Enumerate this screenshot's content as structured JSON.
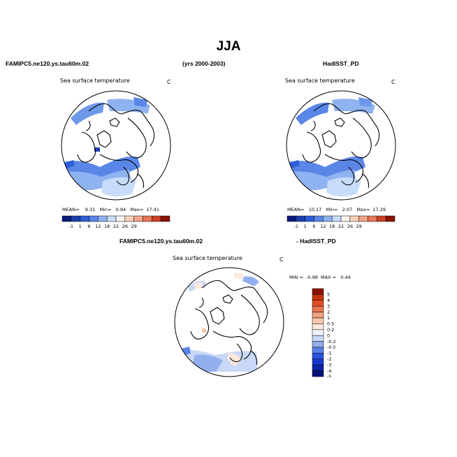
{
  "figure": {
    "season": "JJA",
    "model_name": "FAMIPC5.ne120.ys.tau60m.02",
    "years": "(yrs 2000-2003)",
    "obs_name": "HadISST_PD",
    "diff_model": "FAMIPC5.ne120.ys.tau60m.02",
    "diff_obs": "- HadISST_PD"
  },
  "panels": {
    "model": {
      "title": "Sea surface temperature",
      "units": "C",
      "mean_label": "MEAN=",
      "mean": "9.31",
      "min_label": "Min=",
      "min": "0.94",
      "max_label": "Max=",
      "max": "17.41"
    },
    "obs": {
      "title": "Sea surface temperature",
      "units": "C",
      "mean_label": "MEAN=",
      "mean": "10.17",
      "min_label": "Min=",
      "min": "2.07",
      "max_label": "Max=",
      "max": "17.29"
    },
    "diff": {
      "title": "Sea surface temperature",
      "units": "C",
      "min_label": "MIN =",
      "min": "-0.98",
      "max_label": "MAX =",
      "max": "0.44"
    }
  },
  "colorbars": {
    "sst": {
      "colors": [
        "#0a1c7a",
        "#1f3fae",
        "#2f5fd8",
        "#5a86e8",
        "#8fb3f0",
        "#c6dcf8",
        "#f7f3ef",
        "#f7d0b8",
        "#f2a488",
        "#e8765a",
        "#cc4226",
        "#8a1206"
      ],
      "labels": [
        "-1",
        "1",
        "6",
        "12",
        "18",
        "22",
        "26",
        "29"
      ]
    },
    "diff": {
      "colors": [
        "#08107a",
        "#0d22a6",
        "#1636cc",
        "#2a55e0",
        "#5a82e6",
        "#92b0ee",
        "#c8d8f6",
        "#ecf1fb",
        "#fde9de",
        "#f8c6ac",
        "#f2a07e",
        "#ea7650",
        "#e04e26",
        "#c8320c",
        "#8c1200"
      ],
      "labels": [
        "5",
        "4",
        "3",
        "2",
        "1",
        "0.5",
        "0.2",
        "0",
        "-0.2",
        "-0.5",
        "-1",
        "-2",
        "-3",
        "-4",
        "-5"
      ]
    }
  },
  "chart_data": [
    {
      "type": "heatmap",
      "title": "Sea surface temperature",
      "units": "C",
      "projection": "north polar stereographic",
      "color_levels": [
        -1,
        1,
        6,
        12,
        18,
        22,
        26,
        29
      ],
      "stats": {
        "mean": 9.31,
        "min": 0.94,
        "max": 17.41
      }
    },
    {
      "type": "heatmap",
      "title": "Sea surface temperature",
      "units": "C",
      "projection": "north polar stereographic",
      "color_levels": [
        -1,
        1,
        6,
        12,
        18,
        22,
        26,
        29
      ],
      "stats": {
        "mean": 10.17,
        "min": 2.07,
        "max": 17.29
      }
    },
    {
      "type": "heatmap",
      "title": "Sea surface temperature",
      "units": "C",
      "projection": "north polar stereographic",
      "color_levels": [
        -5,
        -4,
        -3,
        -2,
        -1,
        -0.5,
        -0.2,
        0,
        0.2,
        0.5,
        1,
        2,
        3,
        4,
        5
      ],
      "stats": {
        "min": -0.98,
        "max": 0.44
      }
    }
  ]
}
